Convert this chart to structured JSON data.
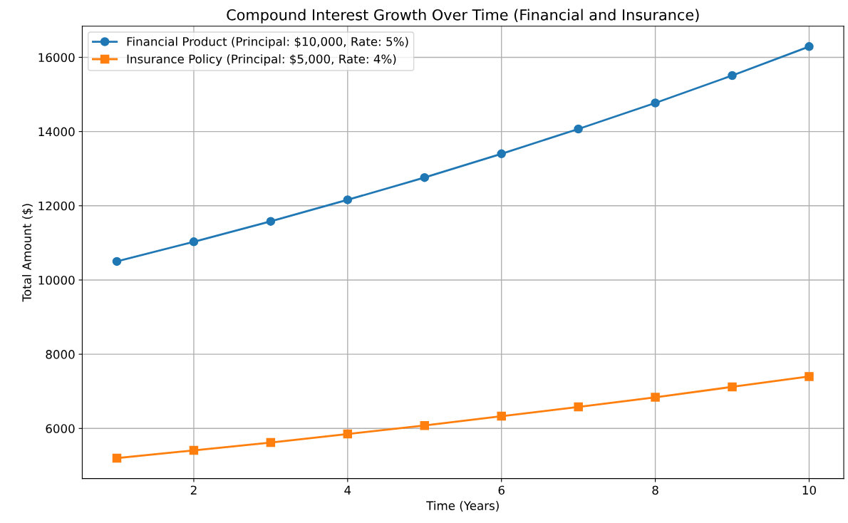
{
  "chart_data": {
    "type": "line",
    "title": "Compound Interest Growth Over Time (Financial and Insurance)",
    "xlabel": "Time (Years)",
    "ylabel": "Total Amount ($)",
    "x": [
      1,
      2,
      3,
      4,
      5,
      6,
      7,
      8,
      9,
      10
    ],
    "series": [
      {
        "name": "Financial Product (Principal: $10,000, Rate: 5%)",
        "color": "#1f77b4",
        "marker": "circle",
        "values": [
          10500,
          11030,
          11580,
          12160,
          12760,
          13400,
          14070,
          14770,
          15510,
          16290
        ]
      },
      {
        "name": "Insurance Policy (Principal: $5,000, Rate: 4%)",
        "color": "#ff7f0e",
        "marker": "square",
        "values": [
          5200,
          5410,
          5620,
          5850,
          6080,
          6330,
          6580,
          6840,
          7120,
          7400
        ]
      }
    ],
    "xlim": [
      0.55,
      10.45
    ],
    "ylim": [
      4650,
      16840
    ],
    "xticks": [
      2,
      4,
      6,
      8,
      10
    ],
    "yticks": [
      6000,
      8000,
      10000,
      12000,
      14000,
      16000
    ],
    "grid": true,
    "legend": "top left",
    "line_style": "solid"
  }
}
